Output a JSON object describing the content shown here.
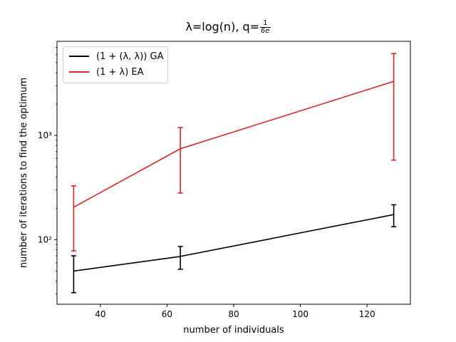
{
  "chart_data": {
    "type": "line",
    "title": "λ=log(n), q=1/6e",
    "title_parts": {
      "main": "λ=log(n), q=",
      "frac_num": "1",
      "frac_den": "6e"
    },
    "xlabel": "number of individuals",
    "ylabel": "number of iterations to find the optimum",
    "yscale": "log",
    "xlim": [
      27,
      133
    ],
    "ylim": [
      24,
      8000
    ],
    "x_ticks": [
      40,
      60,
      80,
      100,
      120
    ],
    "y_ticks": [
      {
        "value": 100,
        "label": "10²"
      },
      {
        "value": 1000,
        "label": "10³"
      }
    ],
    "grid": false,
    "legend_position": "top-left",
    "x": [
      32,
      64,
      128
    ],
    "series": [
      {
        "name": "(1 + (λ, λ)) GA",
        "color": "#000000",
        "values": [
          50,
          69,
          174
        ],
        "err_low": [
          31,
          52,
          133
        ],
        "err_high": [
          70,
          86,
          216
        ]
      },
      {
        "name": "(1 + λ) EA",
        "color": "#d62728",
        "values": [
          205,
          745,
          3300
        ],
        "err_low": [
          78,
          280,
          580
        ],
        "err_high": [
          328,
          1190,
          6100
        ]
      }
    ]
  }
}
